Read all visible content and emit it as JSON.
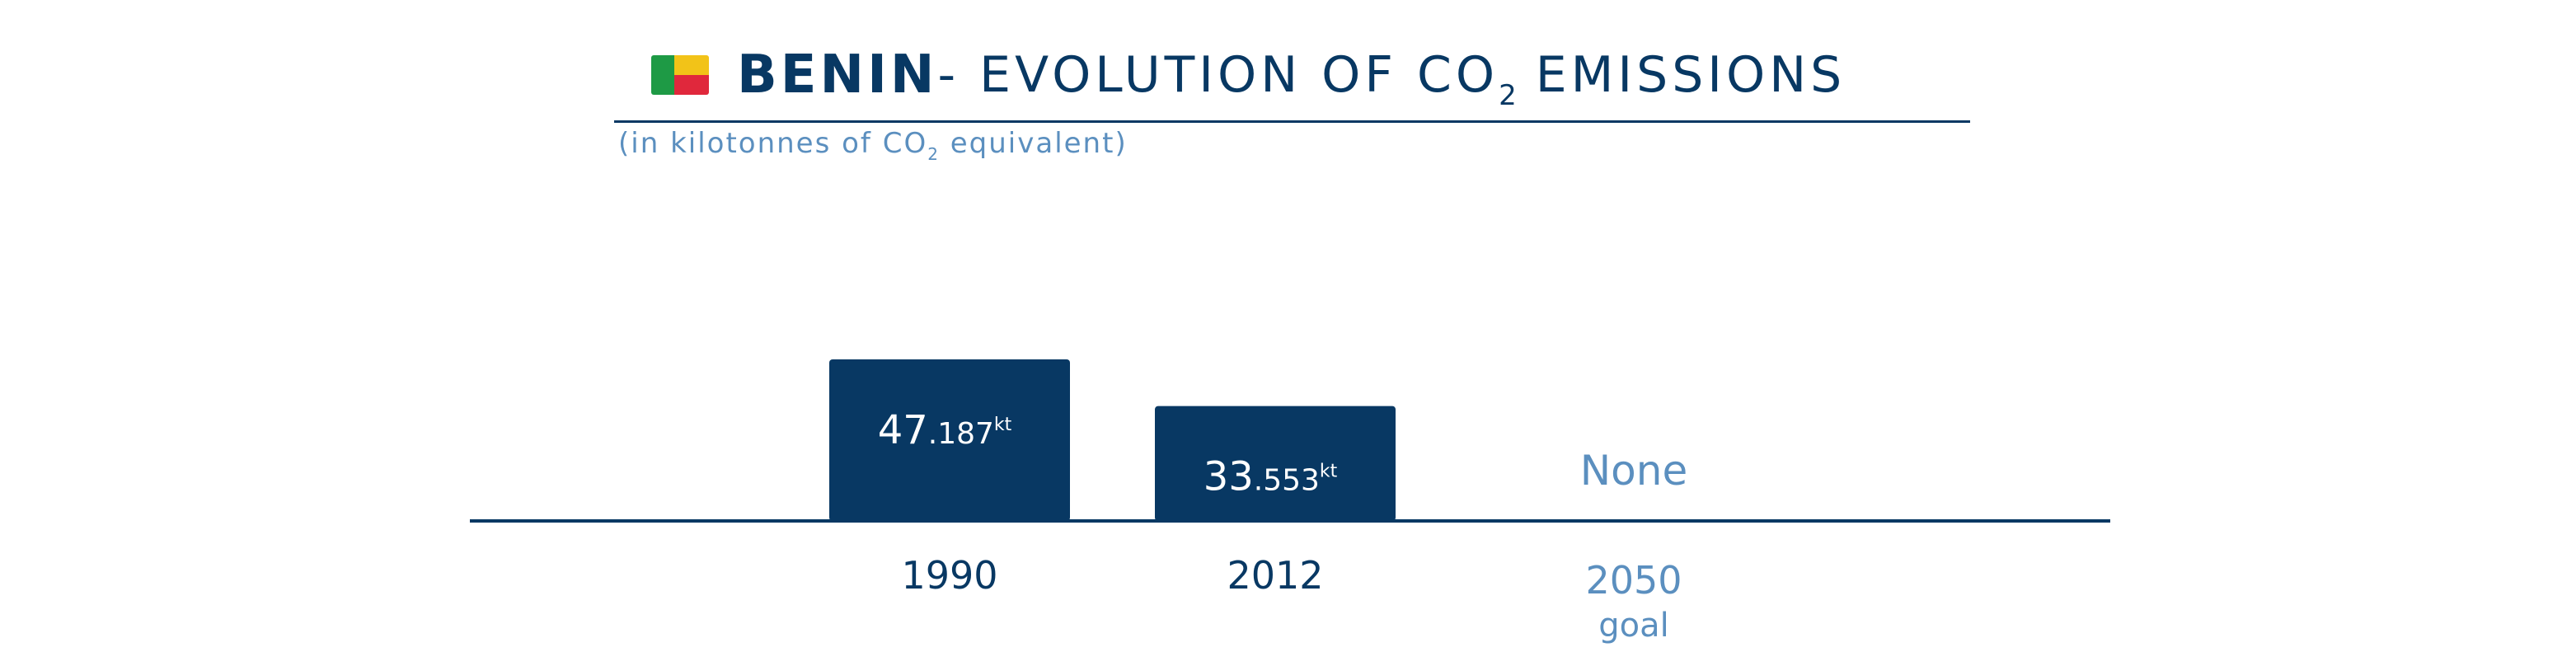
{
  "header": {
    "country": "BENIN",
    "dash": "-",
    "title_main": " EVOLUTION OF CO",
    "title_sub": "2",
    "title_after": "EMISSIONS",
    "subtitle_pre": "(in kilotonnes of CO",
    "subtitle_sub": "2",
    "subtitle_post": " equivalent)",
    "flag_colors": [
      "#1e9a45",
      "#f2c318",
      "#e0283c"
    ]
  },
  "colors": {
    "bar": "#083863",
    "goal": "#5b8fbf",
    "axis": "#083863"
  },
  "chart_data": {
    "type": "bar",
    "title": "BENIN- EVOLUTION OF CO2 EMISSIONS",
    "subtitle": "(in kilotonnes of CO2 equivalent)",
    "categories": [
      "1990",
      "2012",
      "2050"
    ],
    "category_notes": [
      "",
      "",
      "goal"
    ],
    "values": [
      47.187,
      33.553,
      null
    ],
    "value_labels": [
      {
        "major": "47",
        "minor": ".187",
        "unit": "kt"
      },
      {
        "major": "33",
        "minor": ".553",
        "unit": "kt"
      },
      {
        "major": "None",
        "minor": "",
        "unit": ""
      }
    ],
    "ylim": [
      0,
      60
    ],
    "grid": false,
    "legend": "none"
  }
}
